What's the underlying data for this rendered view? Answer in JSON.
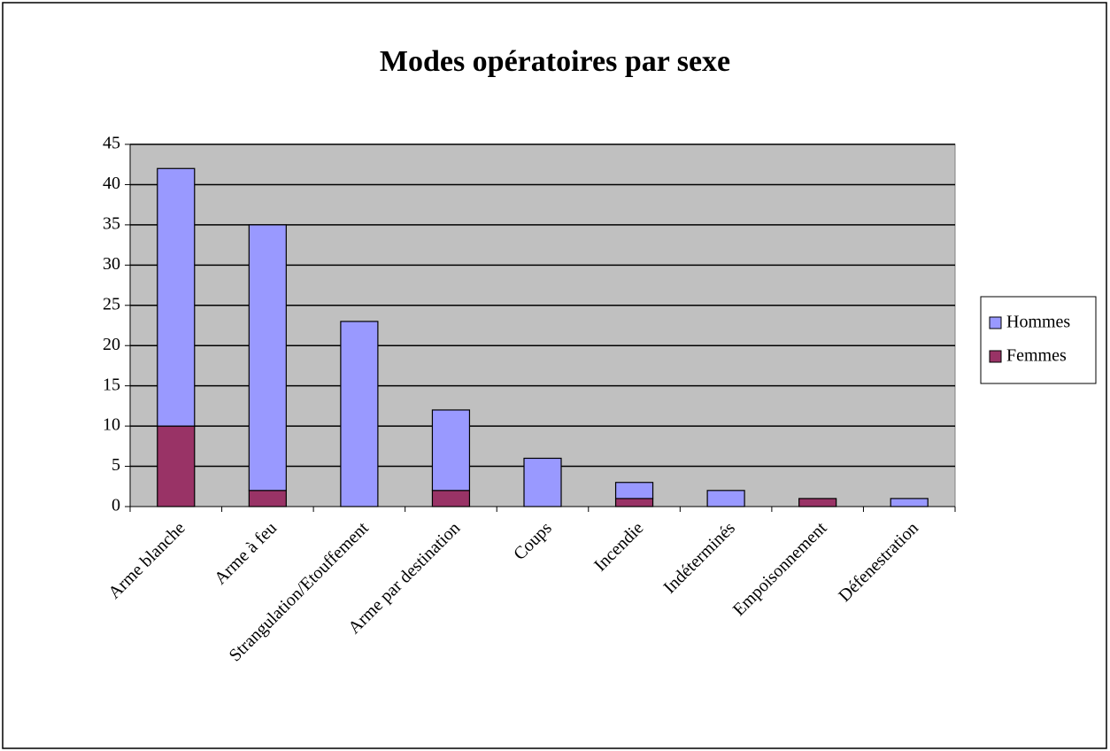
{
  "chart_data": {
    "type": "bar",
    "stacked": true,
    "title": "Modes opératoires par sexe",
    "categories": [
      "Arme blanche",
      "Arme à feu",
      "Strangulation/Etouffement",
      "Arme par destination",
      "Coups",
      "Incendie",
      "Indéterminés",
      "Empoisonnement",
      "Défenestration"
    ],
    "series": [
      {
        "name": "Hommes",
        "color": "#9999ff",
        "values": [
          32,
          33,
          23,
          10,
          6,
          2,
          2,
          0,
          1
        ]
      },
      {
        "name": "Femmes",
        "color": "#993366",
        "values": [
          10,
          2,
          0,
          2,
          0,
          1,
          0,
          1,
          0
        ]
      }
    ],
    "ylim": [
      0,
      45
    ],
    "yticks": [
      0,
      5,
      10,
      15,
      20,
      25,
      30,
      35,
      40,
      45
    ],
    "grid": true,
    "legend": "right"
  }
}
